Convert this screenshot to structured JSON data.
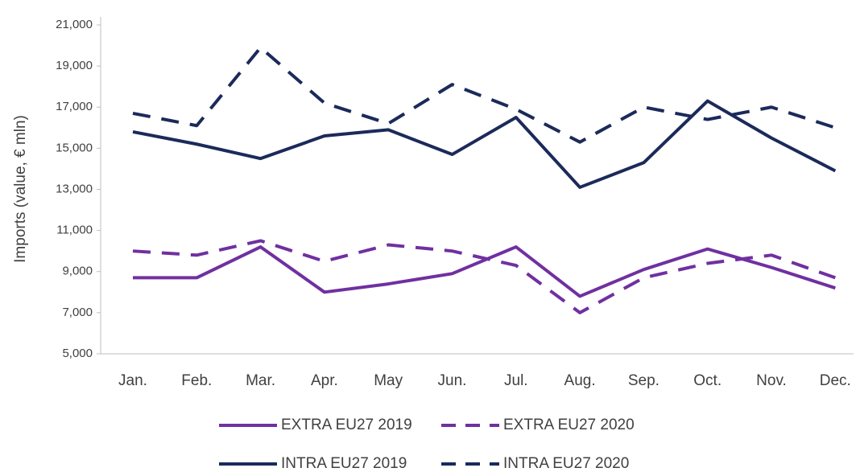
{
  "chart_data": {
    "type": "line",
    "y_label": "Imports (value, € mln)",
    "categories": [
      "Jan.",
      "Feb.",
      "Mar.",
      "Apr.",
      "May",
      "Jun.",
      "Jul.",
      "Aug.",
      "Sep.",
      "Oct.",
      "Nov.",
      "Dec."
    ],
    "series": [
      {
        "name": "EXTRA EU27 2019",
        "color": "#7030a0",
        "dashed": false,
        "values": [
          8700,
          8700,
          10200,
          8000,
          8400,
          8900,
          10200,
          7800,
          9100,
          10100,
          9200,
          8200
        ]
      },
      {
        "name": "EXTRA EU27 2020",
        "color": "#7030a0",
        "dashed": true,
        "values": [
          10000,
          9800,
          10500,
          9500,
          10300,
          10000,
          9300,
          7000,
          8700,
          9400,
          9800,
          8700
        ]
      },
      {
        "name": "INTRA EU27 2019",
        "color": "#1b2a5a",
        "dashed": false,
        "values": [
          15800,
          15200,
          14500,
          15600,
          15900,
          14700,
          16500,
          13100,
          14300,
          17300,
          15500,
          13900
        ]
      },
      {
        "name": "INTRA EU27 2020",
        "color": "#1b2a5a",
        "dashed": true,
        "values": [
          16700,
          16100,
          19900,
          17200,
          16200,
          18100,
          16900,
          15300,
          17000,
          16400,
          17000,
          16000
        ]
      }
    ],
    "ylim": [
      5000,
      21000
    ],
    "yticks": [
      {
        "value": 5000,
        "label": "5,000"
      },
      {
        "value": 7000,
        "label": "7,000"
      },
      {
        "value": 9000,
        "label": "9,000"
      },
      {
        "value": 11000,
        "label": "11,000"
      },
      {
        "value": 13000,
        "label": "13,000"
      },
      {
        "value": 15000,
        "label": "15,000"
      },
      {
        "value": 17000,
        "label": "17,000"
      },
      {
        "value": 19000,
        "label": "19,000"
      },
      {
        "value": 21000,
        "label": "21,000"
      }
    ],
    "grid": false,
    "legend": "bottom"
  }
}
